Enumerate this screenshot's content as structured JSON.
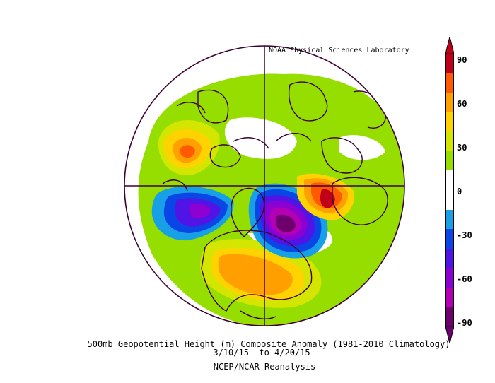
{
  "credit": "NOAA Physical Sciences Laboratory",
  "caption": {
    "line1": "500mb Geopotential Height (m) Composite Anomaly (1981-2010 Climatology)",
    "line2": "3/10/15  to 4/20/15",
    "line3": "NCEP/NCAR Reanalysis"
  },
  "colorbar": {
    "labels": [
      "90",
      "60",
      "30",
      "0",
      "-30",
      "-60",
      "-90"
    ],
    "colors": [
      "#c0001a",
      "#ff5a00",
      "#ffa000",
      "#ffd200",
      "#d4e600",
      "#96de00",
      "#ffffff",
      "#ffffff",
      "#18a0e6",
      "#0a46e6",
      "#5014e6",
      "#8c00d2",
      "#b400b4",
      "#6e006e"
    ]
  },
  "map": {
    "projection": "polar stereographic (north)",
    "land_outline_color": "#3c0032"
  }
}
